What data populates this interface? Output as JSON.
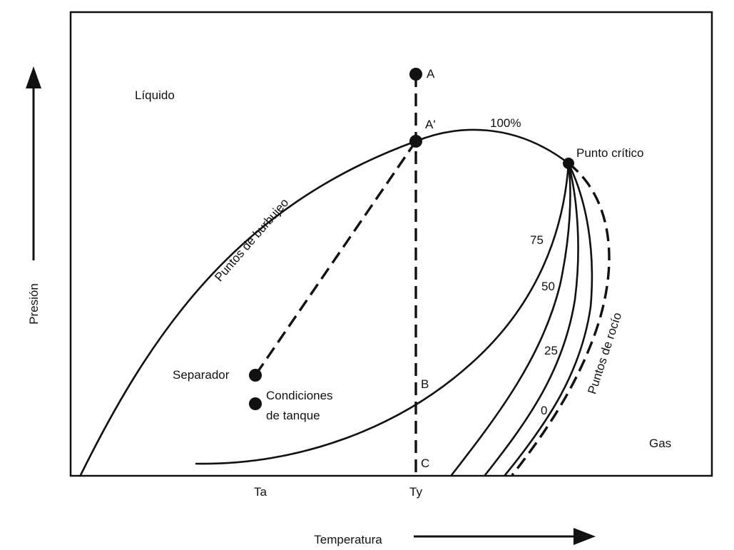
{
  "axes": {
    "y_label": "Presión",
    "x_label": "Temperatura",
    "x_ticks": [
      "Ta",
      "Ty"
    ]
  },
  "regions": {
    "liquid": "Líquido",
    "gas": "Gas"
  },
  "curves": {
    "bubble": "Puntos de burbujeo",
    "dew": "Puntos de rocío",
    "quality_labels": [
      "100%",
      "75",
      "50",
      "25",
      "0"
    ]
  },
  "points": {
    "A": "A",
    "A_prime": "A'",
    "B": "B",
    "C": "C",
    "critical": "Punto crítico",
    "separator": "Separador",
    "tank_line1": "Condiciones",
    "tank_line2": "de tanque"
  }
}
